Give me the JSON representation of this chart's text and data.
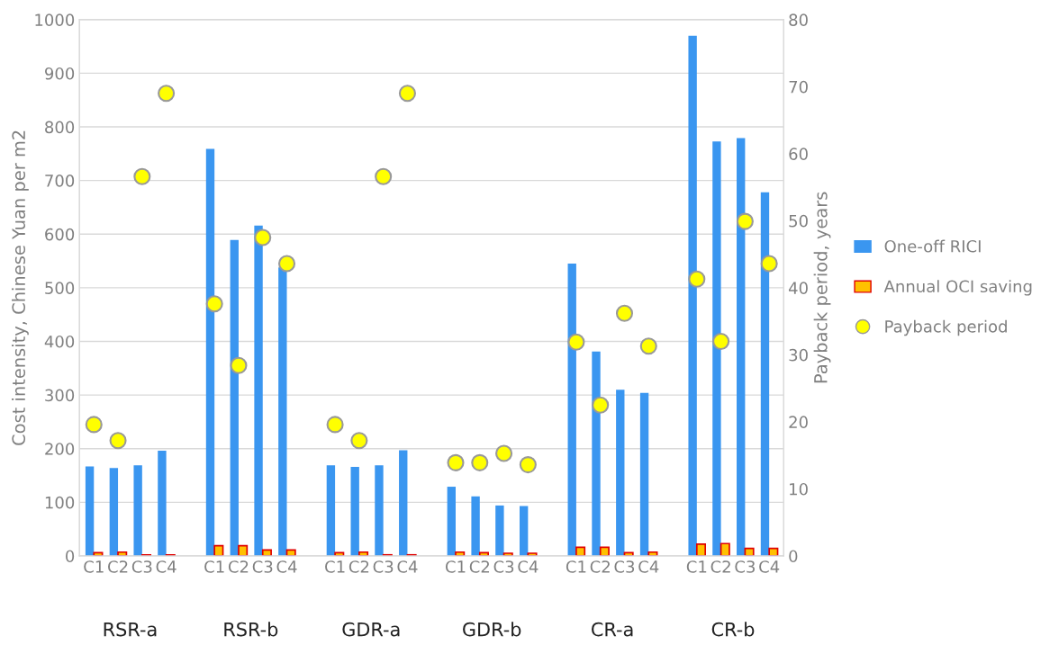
{
  "chart_data": {
    "type": "bar",
    "ylabel": "Cost intensity, Chinese Yuan per m2",
    "y2label": "Payback period, years",
    "categories": [
      "C1",
      "C2",
      "C3",
      "C4",
      null,
      "C1",
      "C2",
      "C3",
      "C4",
      null,
      "C1",
      "C2",
      "C3",
      "C4",
      null,
      "C1",
      "C2",
      "C3",
      "C4",
      null,
      "C1",
      "C2",
      "C3",
      "C4",
      null,
      "C1",
      "C2",
      "C3",
      "C4"
    ],
    "annotations": [
      "RSR-a",
      "RSR-b",
      "GDR-a",
      "GDR-b",
      "CR-a",
      "CR-b"
    ],
    "series": [
      {
        "name": "One-off RICI",
        "color": "#3a96f0",
        "values": [
          167,
          164,
          169,
          196,
          null,
          759,
          589,
          616,
          538,
          null,
          169,
          166,
          169,
          197,
          null,
          129,
          111,
          94,
          93,
          null,
          545,
          381,
          310,
          304,
          null,
          970,
          773,
          779,
          678
        ]
      },
      {
        "name": "Annual OCI saving",
        "color": "#ffc000",
        "values": [
          6,
          7,
          2,
          2,
          null,
          19,
          19,
          11,
          11,
          null,
          6,
          7,
          2,
          2,
          null,
          7,
          6,
          5,
          5,
          null,
          16,
          16,
          6,
          7,
          null,
          22,
          23,
          14,
          14
        ]
      },
      {
        "name": "Payback period",
        "type": "scatter",
        "axis": "y2",
        "color": "#ffff00",
        "marker": "circle",
        "values": [
          19.6,
          17.2,
          56.6,
          69.0,
          null,
          37.6,
          28.4,
          47.5,
          43.6,
          null,
          19.6,
          17.2,
          56.6,
          69.0,
          null,
          13.9,
          13.9,
          15.3,
          13.6,
          null,
          31.9,
          22.5,
          36.2,
          31.3,
          null,
          41.3,
          32.0,
          49.9,
          43.6
        ]
      }
    ],
    "ylim": [
      0,
      1000
    ],
    "yticks": [
      0,
      100,
      200,
      300,
      400,
      500,
      600,
      700,
      800,
      900,
      1000
    ],
    "y2lim": [
      0,
      80
    ],
    "y2ticks": [
      0,
      10,
      20,
      30,
      40,
      50,
      60,
      70,
      80
    ],
    "grid": "y",
    "legend": "right"
  }
}
